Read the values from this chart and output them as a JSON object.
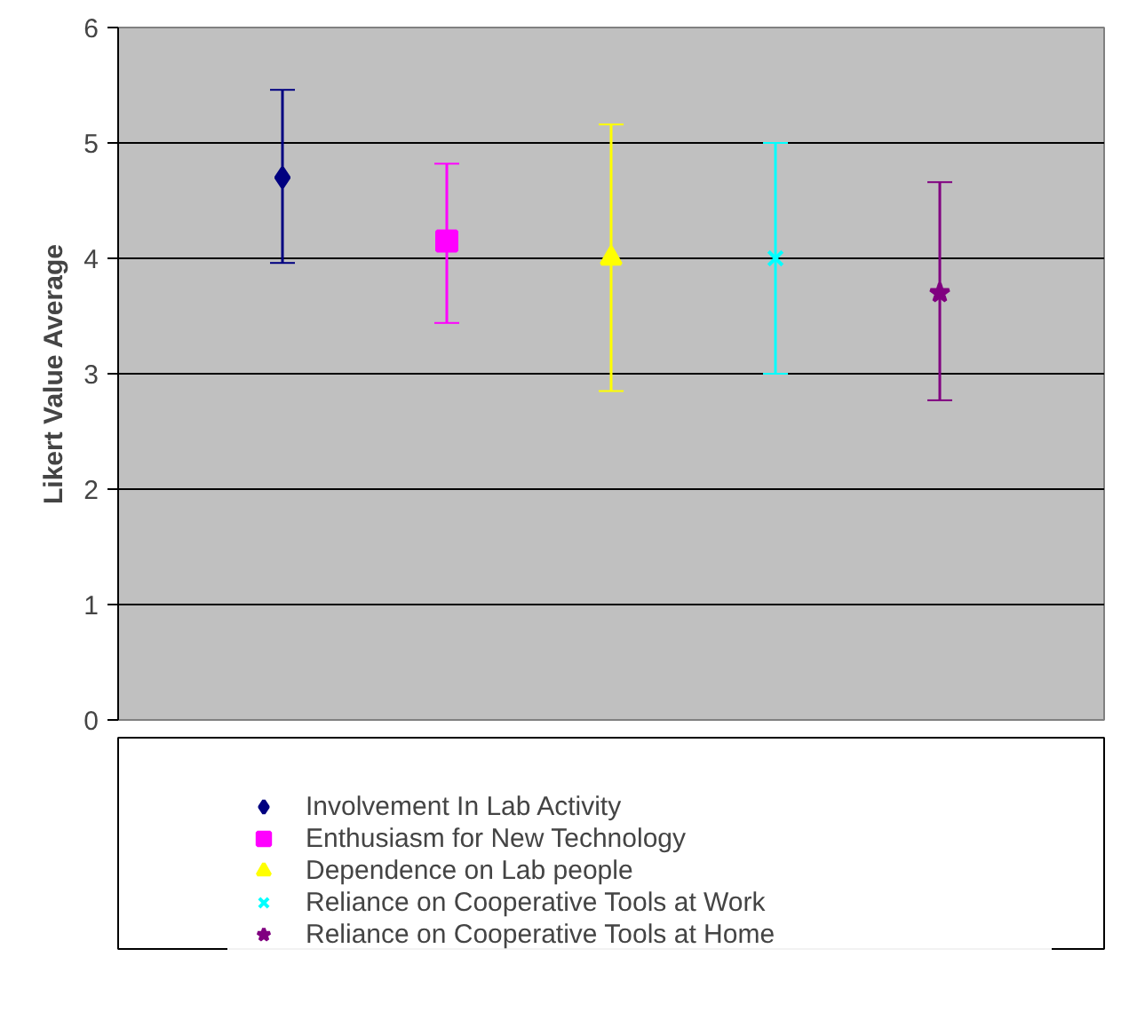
{
  "chart_data": {
    "type": "scatter",
    "ylabel": "Likert Value Average",
    "categories": [
      null,
      null,
      null,
      null,
      null
    ],
    "ylim": [
      0,
      6
    ],
    "yticks": [
      0,
      1,
      2,
      3,
      4,
      5,
      6
    ],
    "grid": "y",
    "legend": "bottom",
    "series": [
      {
        "name": "Involvement In Lab Activity",
        "color": "#000080",
        "marker": "diamond",
        "values": [
          4.7,
          null,
          null,
          null,
          null
        ],
        "errors": [
          [
            3.96,
            5.46
          ],
          null,
          null,
          null,
          null
        ]
      },
      {
        "name": "Enthusiasm for New Technology",
        "color": "#ff00ff",
        "marker": "square",
        "values": [
          null,
          4.15,
          null,
          null,
          null
        ],
        "errors": [
          null,
          [
            3.44,
            4.82
          ],
          null,
          null,
          null
        ]
      },
      {
        "name": "Dependence on Lab people",
        "color": "#ffff00",
        "marker": "triangle",
        "values": [
          null,
          null,
          4.0,
          null,
          null
        ],
        "errors": [
          null,
          null,
          [
            2.85,
            5.16
          ],
          null,
          null
        ]
      },
      {
        "name": "Reliance on Cooperative Tools at Work",
        "color": "#00ffff",
        "marker": "cross",
        "values": [
          null,
          null,
          null,
          4.0,
          null
        ],
        "errors": [
          null,
          null,
          null,
          [
            3.0,
            5.0
          ],
          null
        ]
      },
      {
        "name": "Reliance on Cooperative Tools at Home",
        "color": "#800080",
        "marker": "star",
        "values": [
          null,
          null,
          null,
          null,
          3.7
        ],
        "errors": [
          null,
          null,
          null,
          null,
          [
            2.77,
            4.66
          ]
        ]
      }
    ]
  }
}
